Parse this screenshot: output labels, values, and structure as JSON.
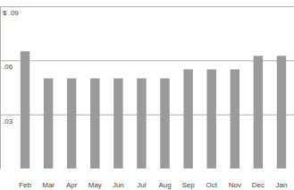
{
  "chart_data": {
    "type": "bar",
    "categories": [
      "Feb",
      "Mar",
      "Apr",
      "May",
      "Jun",
      "Jul",
      "Aug",
      "Sep",
      "Oct",
      "Nov",
      "Dec",
      "Jan"
    ],
    "values": [
      0.065,
      0.05,
      0.05,
      0.05,
      0.05,
      0.05,
      0.05,
      0.055,
      0.055,
      0.055,
      0.0625,
      0.0625
    ],
    "color": "#9a9a9a",
    "ylim": [
      0,
      0.09
    ],
    "yticks": [
      {
        "value": 0.03,
        "label": ".03"
      },
      {
        "value": 0.06,
        "label": ".06"
      },
      {
        "value": 0.09,
        "label": "$ .09"
      }
    ],
    "grid": true
  }
}
